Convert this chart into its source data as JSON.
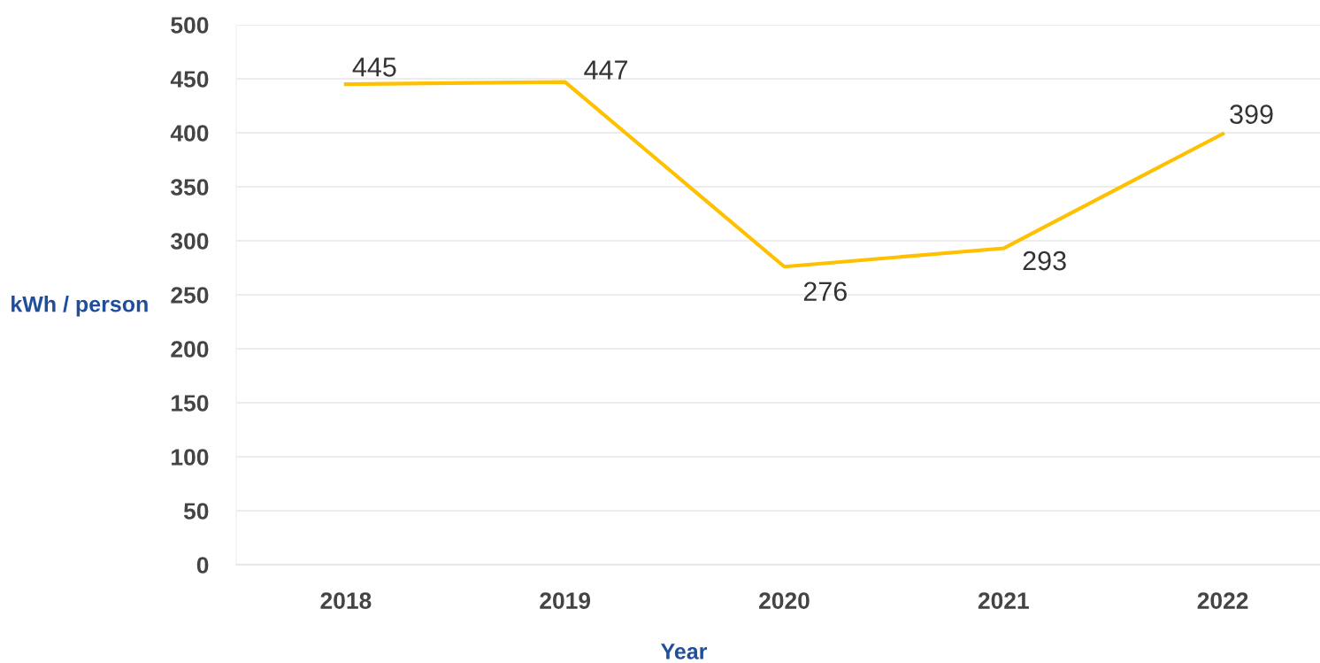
{
  "chart_data": {
    "type": "line",
    "xlabel": "Year",
    "ylabel": "kWh / person",
    "categories": [
      "2018",
      "2019",
      "2020",
      "2021",
      "2022"
    ],
    "series": [
      {
        "color": "#ffc000",
        "values": [
          445,
          447,
          276,
          293,
          399
        ]
      }
    ],
    "ylim": [
      0,
      500
    ],
    "yticks": [
      0,
      50,
      100,
      150,
      200,
      250,
      300,
      350,
      400,
      450,
      500
    ],
    "grid": "y",
    "data_labels": true,
    "marker": "none",
    "line_style": "solid"
  }
}
